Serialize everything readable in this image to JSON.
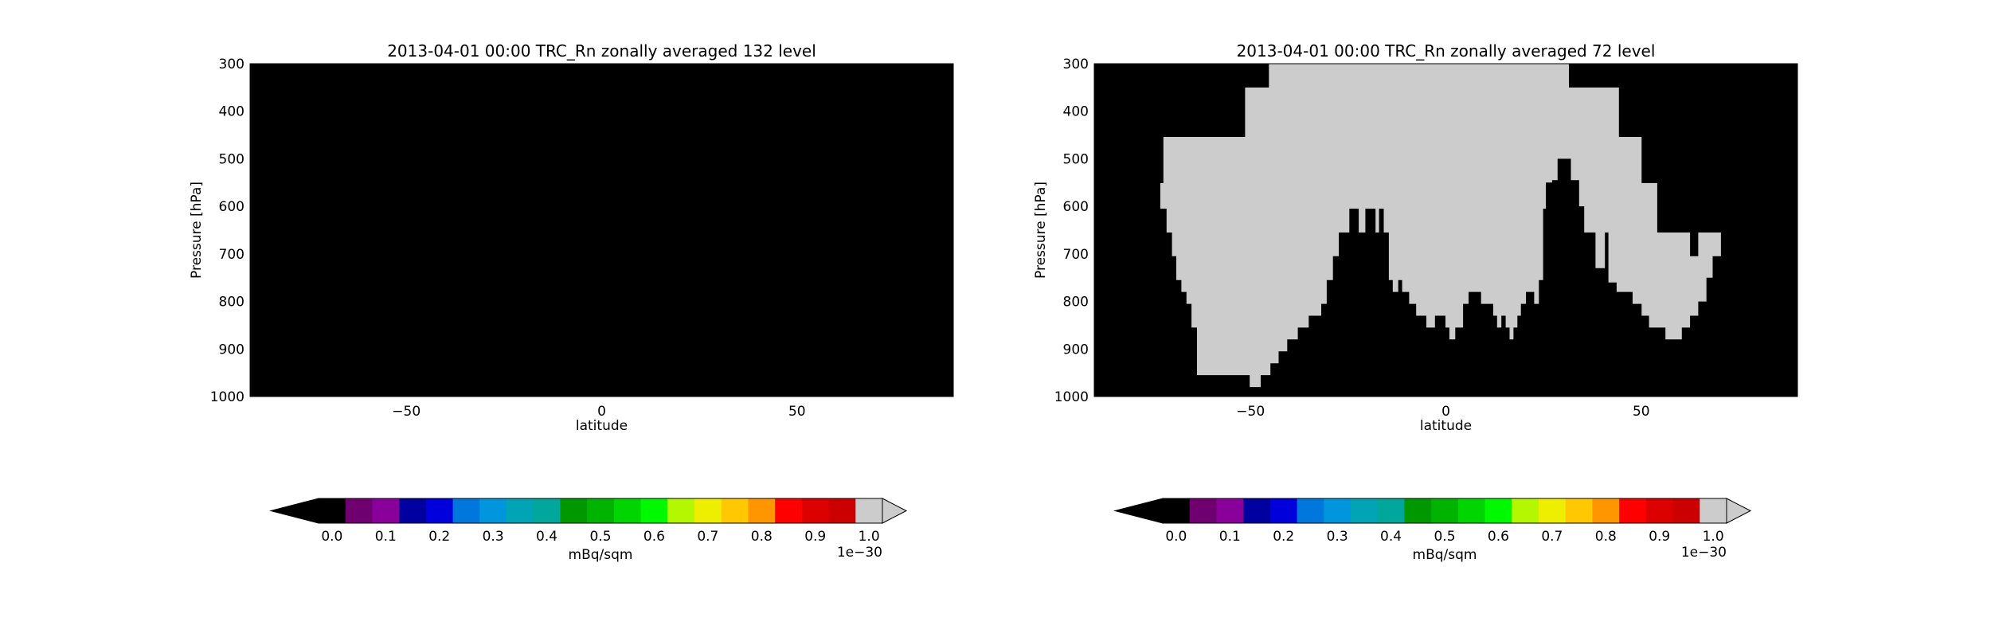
{
  "colormap": {
    "colors": [
      "#000000",
      "#700070",
      "#8a009a",
      "#0000a0",
      "#0000dd",
      "#0077dd",
      "#0096dd",
      "#00a4b4",
      "#00a79a",
      "#009800",
      "#00b300",
      "#00d500",
      "#00f800",
      "#b3f800",
      "#eeee00",
      "#ffc800",
      "#ff9600",
      "#ff0000",
      "#dd0000",
      "#cc0000",
      "#cccccc"
    ],
    "under_color": "#000000",
    "over_color": "#cccccc"
  },
  "chart_data": [
    {
      "type": "heatmap",
      "title": "2013-04-01 00:00 TRC_Rn zonally averaged 132 level",
      "xlabel": "latitude",
      "ylabel": "Pressure [hPa]",
      "xlim": [
        -90,
        90
      ],
      "ylim": [
        1000,
        300
      ],
      "x_ticks": [
        -50,
        0,
        50
      ],
      "x_tick_labels": [
        "−50",
        "0",
        "50"
      ],
      "y_ticks": [
        300,
        400,
        500,
        600,
        700,
        800,
        900,
        1000
      ],
      "y_tick_labels": [
        "300",
        "400",
        "500",
        "600",
        "700",
        "800",
        "900",
        "1000"
      ],
      "background_color": "#000000",
      "above_range_color": "#cccccc",
      "above_range_boundary": [],
      "colorbar": {
        "label": "mBq/sqm",
        "ticks": [
          0.0,
          0.1,
          0.2,
          0.3,
          0.4,
          0.5,
          0.6,
          0.7,
          0.8,
          0.9,
          1.0
        ],
        "tick_labels": [
          "0.0",
          "0.1",
          "0.2",
          "0.3",
          "0.4",
          "0.5",
          "0.6",
          "0.7",
          "0.8",
          "0.9",
          "1.0"
        ],
        "scale_label": "1e−30",
        "extend": "both"
      }
    },
    {
      "type": "heatmap",
      "title": "2013-04-01 00:00 TRC_Rn zonally averaged 72 level",
      "xlabel": "latitude",
      "ylabel": "Pressure [hPa]",
      "xlim": [
        -90,
        90
      ],
      "ylim": [
        1000,
        300
      ],
      "x_ticks": [
        -50,
        0,
        50
      ],
      "x_tick_labels": [
        "−50",
        "0",
        "50"
      ],
      "y_ticks": [
        300,
        400,
        500,
        600,
        700,
        800,
        900,
        1000
      ],
      "y_tick_labels": [
        "300",
        "400",
        "500",
        "600",
        "700",
        "800",
        "900",
        "1000"
      ],
      "background_color": "#000000",
      "above_range_color": "#cccccc",
      "above_range_boundary": [
        [
          -74.4,
          551
        ],
        [
          -72.3,
          551
        ],
        [
          -72.3,
          454
        ],
        [
          -51.4,
          454
        ],
        [
          -51.4,
          350
        ],
        [
          -45.3,
          350
        ],
        [
          -45.3,
          300
        ],
        [
          31.5,
          300
        ],
        [
          31.5,
          350
        ],
        [
          44.3,
          350
        ],
        [
          44.3,
          454
        ],
        [
          50.1,
          454
        ],
        [
          50.1,
          551
        ],
        [
          54.1,
          551
        ],
        [
          54.1,
          655
        ],
        [
          62.5,
          655
        ],
        [
          62.5,
          705
        ],
        [
          64.6,
          705
        ],
        [
          64.6,
          655
        ],
        [
          70.4,
          655
        ],
        [
          70.4,
          705
        ],
        [
          68.3,
          705
        ],
        [
          68.3,
          750
        ],
        [
          66.7,
          750
        ],
        [
          66.7,
          800
        ],
        [
          64.6,
          800
        ],
        [
          64.6,
          830
        ],
        [
          62.5,
          830
        ],
        [
          62.5,
          855
        ],
        [
          60.4,
          855
        ],
        [
          60.4,
          880
        ],
        [
          56.2,
          880
        ],
        [
          56.2,
          855
        ],
        [
          52.0,
          855
        ],
        [
          52.0,
          830
        ],
        [
          50.1,
          830
        ],
        [
          50.1,
          805
        ],
        [
          47.8,
          805
        ],
        [
          47.8,
          780
        ],
        [
          43.7,
          780
        ],
        [
          43.7,
          760
        ],
        [
          41.6,
          760
        ],
        [
          41.6,
          655
        ],
        [
          40.7,
          655
        ],
        [
          40.7,
          730
        ],
        [
          38.3,
          730
        ],
        [
          38.3,
          655
        ],
        [
          35.4,
          655
        ],
        [
          35.4,
          600
        ],
        [
          34.1,
          600
        ],
        [
          34.1,
          545
        ],
        [
          32.0,
          545
        ],
        [
          32.0,
          500
        ],
        [
          28.6,
          500
        ],
        [
          28.6,
          545
        ],
        [
          27.2,
          545
        ],
        [
          27.2,
          550
        ],
        [
          26.4,
          550
        ],
        [
          26.4,
          550
        ],
        [
          25.6,
          550
        ],
        [
          25.6,
          605
        ],
        [
          24.9,
          605
        ],
        [
          24.9,
          755
        ],
        [
          23.8,
          755
        ],
        [
          23.8,
          805
        ],
        [
          22.6,
          805
        ],
        [
          22.6,
          780
        ],
        [
          20.5,
          780
        ],
        [
          20.5,
          805
        ],
        [
          19.2,
          805
        ],
        [
          19.2,
          830
        ],
        [
          18.3,
          830
        ],
        [
          18.3,
          855
        ],
        [
          17.3,
          855
        ],
        [
          17.3,
          880
        ],
        [
          16.3,
          880
        ],
        [
          16.3,
          855
        ],
        [
          15.3,
          855
        ],
        [
          15.3,
          830
        ],
        [
          14.2,
          830
        ],
        [
          14.2,
          855
        ],
        [
          13.1,
          855
        ],
        [
          13.1,
          830
        ],
        [
          12.1,
          830
        ],
        [
          12.1,
          805
        ],
        [
          9.0,
          805
        ],
        [
          9.0,
          780
        ],
        [
          5.8,
          780
        ],
        [
          5.8,
          805
        ],
        [
          4.4,
          805
        ],
        [
          4.4,
          855
        ],
        [
          2.4,
          855
        ],
        [
          2.4,
          880
        ],
        [
          0.9,
          880
        ],
        [
          0.9,
          855
        ],
        [
          -0.1,
          855
        ],
        [
          -0.1,
          830
        ],
        [
          -2.8,
          830
        ],
        [
          -2.8,
          855
        ],
        [
          -5.0,
          855
        ],
        [
          -5.0,
          830
        ],
        [
          -7.6,
          830
        ],
        [
          -7.6,
          805
        ],
        [
          -9.4,
          805
        ],
        [
          -9.4,
          780
        ],
        [
          -11.2,
          780
        ],
        [
          -11.2,
          755
        ],
        [
          -12.2,
          755
        ],
        [
          -12.2,
          780
        ],
        [
          -13.6,
          780
        ],
        [
          -13.6,
          755
        ],
        [
          -14.6,
          755
        ],
        [
          -14.6,
          655
        ],
        [
          -15.9,
          655
        ],
        [
          -15.9,
          605
        ],
        [
          -17.1,
          605
        ],
        [
          -17.1,
          655
        ],
        [
          -18.0,
          655
        ],
        [
          -18.0,
          605
        ],
        [
          -20.6,
          605
        ],
        [
          -20.6,
          655
        ],
        [
          -22.3,
          655
        ],
        [
          -22.3,
          605
        ],
        [
          -24.7,
          605
        ],
        [
          -24.7,
          655
        ],
        [
          -27.4,
          655
        ],
        [
          -27.4,
          705
        ],
        [
          -28.9,
          705
        ],
        [
          -28.9,
          755
        ],
        [
          -30.5,
          755
        ],
        [
          -30.5,
          805
        ],
        [
          -31.9,
          805
        ],
        [
          -31.9,
          830
        ],
        [
          -35.1,
          830
        ],
        [
          -35.1,
          855
        ],
        [
          -37.9,
          855
        ],
        [
          -37.9,
          880
        ],
        [
          -40.6,
          880
        ],
        [
          -40.6,
          905
        ],
        [
          -42.8,
          905
        ],
        [
          -42.8,
          930
        ],
        [
          -44.9,
          930
        ],
        [
          -44.9,
          955
        ],
        [
          -47.4,
          955
        ],
        [
          -47.4,
          980
        ],
        [
          -50.2,
          980
        ],
        [
          -50.2,
          955
        ],
        [
          -57.1,
          955
        ],
        [
          -57.1,
          955
        ],
        [
          -63.7,
          955
        ],
        [
          -63.7,
          855
        ],
        [
          -65.1,
          855
        ],
        [
          -65.1,
          805
        ],
        [
          -66.4,
          805
        ],
        [
          -66.4,
          780
        ],
        [
          -67.7,
          780
        ],
        [
          -67.7,
          755
        ],
        [
          -69.0,
          755
        ],
        [
          -69.0,
          705
        ],
        [
          -70.1,
          705
        ],
        [
          -70.1,
          655
        ],
        [
          -71.5,
          655
        ],
        [
          -71.5,
          605
        ],
        [
          -73.1,
          605
        ],
        [
          -73.1,
          551
        ]
      ],
      "colorbar": {
        "label": "mBq/sqm",
        "ticks": [
          0.0,
          0.1,
          0.2,
          0.3,
          0.4,
          0.5,
          0.6,
          0.7,
          0.8,
          0.9,
          1.0
        ],
        "tick_labels": [
          "0.0",
          "0.1",
          "0.2",
          "0.3",
          "0.4",
          "0.5",
          "0.6",
          "0.7",
          "0.8",
          "0.9",
          "1.0"
        ],
        "scale_label": "1e−30",
        "extend": "both"
      }
    }
  ]
}
